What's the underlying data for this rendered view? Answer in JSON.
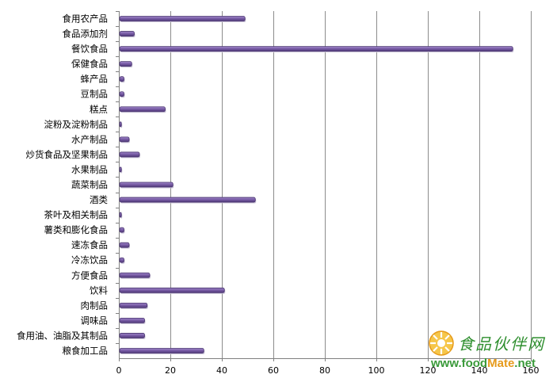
{
  "chart_data": {
    "type": "bar",
    "orientation": "horizontal",
    "categories": [
      "食用农产品",
      "食品添加剂",
      "餐饮食品",
      "保健食品",
      "蜂产品",
      "豆制品",
      "糕点",
      "淀粉及淀粉制品",
      "水产制品",
      "炒货食品及坚果制品",
      "水果制品",
      "蔬菜制品",
      "酒类",
      "茶叶及相关制品",
      "薯类和膨化食品",
      "速冻食品",
      "冷冻饮品",
      "方便食品",
      "饮料",
      "肉制品",
      "调味品",
      "食用油、油脂及其制品",
      "粮食加工品"
    ],
    "values": [
      49,
      6,
      153,
      5,
      2,
      2,
      18,
      1,
      4,
      8,
      1,
      21,
      53,
      1,
      2,
      4,
      2,
      12,
      41,
      11,
      10,
      10,
      33
    ],
    "xlim": [
      0,
      160
    ],
    "xticks": [
      0,
      20,
      40,
      60,
      80,
      100,
      120,
      140,
      160
    ],
    "tick_labels": [
      "0",
      "20",
      "40",
      "60",
      "80",
      "100",
      "120",
      "140",
      "160"
    ],
    "grid": true,
    "bar_color": "#7b5ea8",
    "title": "",
    "xlabel": "",
    "ylabel": ""
  },
  "watermark": {
    "cn_text": "食品伙伴网",
    "url_prefix": "www.food",
    "url_mid": "Mate",
    "url_suffix": ".net"
  }
}
